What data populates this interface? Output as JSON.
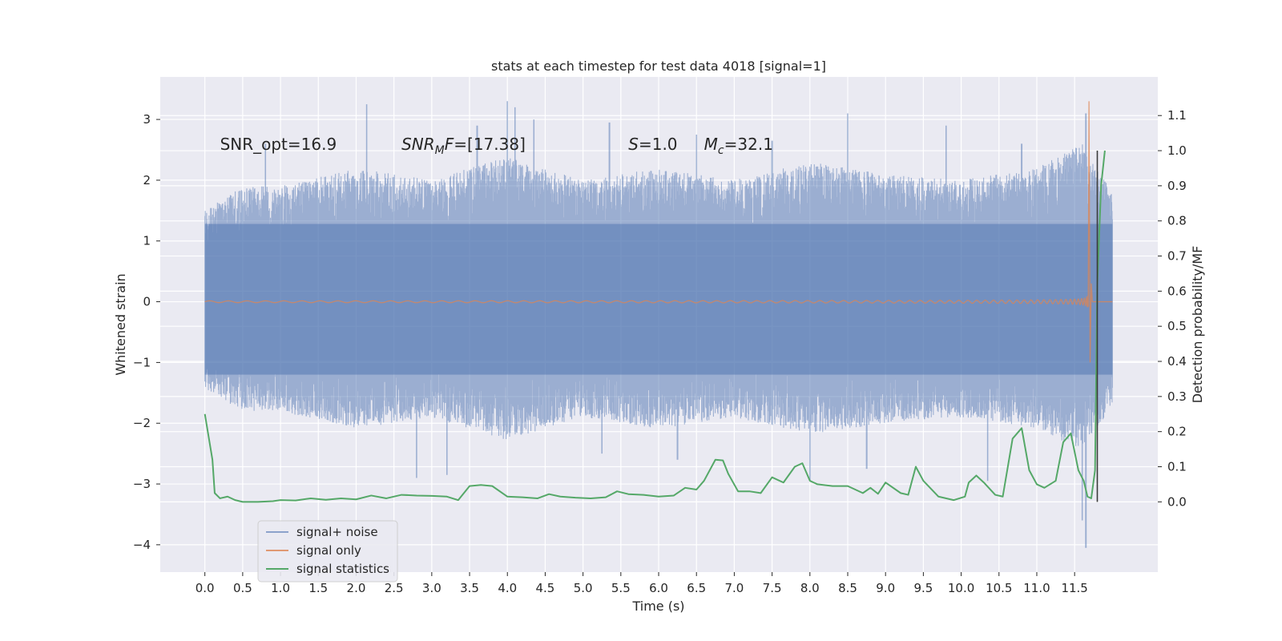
{
  "chart_data": {
    "type": "line",
    "title": "stats at each timestep for test data 4018 [signal=1]",
    "xlabel": "Time (s)",
    "ylabel": "Whitened strain",
    "ylabel_right": "Detection probability/MF",
    "xlim": [
      -0.59,
      12.6
    ],
    "ylim": [
      -4.45,
      3.7
    ],
    "ylim_right": [
      -0.2,
      1.21
    ],
    "x_ticks": [
      "0.0",
      "0.5",
      "1.0",
      "1.5",
      "2.0",
      "2.5",
      "3.0",
      "3.5",
      "4.0",
      "4.5",
      "5.0",
      "5.5",
      "6.0",
      "6.5",
      "7.0",
      "7.5",
      "8.0",
      "8.5",
      "9.0",
      "9.5",
      "10.0",
      "10.5",
      "11.0",
      "11.5"
    ],
    "y_ticks": [
      "3",
      "2",
      "1",
      "0",
      "−1",
      "−2",
      "−3",
      "−4"
    ],
    "y_ticks_right": [
      "1.1",
      "1.0",
      "0.9",
      "0.8",
      "0.7",
      "0.6",
      "0.5",
      "0.4",
      "0.3",
      "0.2",
      "0.1",
      "0.0"
    ],
    "grid": true,
    "legend_position": "lower-left",
    "annotations": [
      {
        "text": "SNR_opt=16.9",
        "x": 0.2,
        "y": 2.5
      },
      {
        "text": "SNR_MF=[17.38]",
        "x": 2.6,
        "y": 2.5
      },
      {
        "text": "S=1.0",
        "x": 5.6,
        "y": 2.5
      },
      {
        "text": "M_c=32.1",
        "x": 6.6,
        "y": 2.5
      }
    ],
    "duration": 12.0,
    "merger_time": 11.68,
    "vertical_marker_x": 11.8,
    "series": [
      {
        "name": "signal+ noise",
        "color": "#4c72b0",
        "opacity": 0.5,
        "envelope": [
          [
            0.0,
            1.5
          ],
          [
            0.5,
            1.9
          ],
          [
            1.0,
            1.9
          ],
          [
            2.0,
            2.2
          ],
          [
            3.0,
            2.0
          ],
          [
            4.0,
            2.4
          ],
          [
            5.0,
            2.0
          ],
          [
            6.0,
            2.2
          ],
          [
            7.0,
            2.0
          ],
          [
            8.0,
            2.3
          ],
          [
            9.0,
            2.1
          ],
          [
            10.0,
            2.0
          ],
          [
            11.0,
            2.2
          ],
          [
            11.6,
            2.6
          ],
          [
            12.0,
            1.8
          ]
        ],
        "peaks_up": [
          [
            0.8,
            2.6
          ],
          [
            2.14,
            3.25
          ],
          [
            3.6,
            2.9
          ],
          [
            4.0,
            3.3
          ],
          [
            4.1,
            3.2
          ],
          [
            4.35,
            3.0
          ],
          [
            5.35,
            2.95
          ],
          [
            6.5,
            2.75
          ],
          [
            7.5,
            2.65
          ],
          [
            8.5,
            3.1
          ],
          [
            9.8,
            2.9
          ],
          [
            10.8,
            2.6
          ],
          [
            11.65,
            3.1
          ]
        ],
        "peaks_down": [
          [
            2.8,
            -2.9
          ],
          [
            3.2,
            -2.85
          ],
          [
            5.25,
            -2.5
          ],
          [
            6.25,
            -2.6
          ],
          [
            8.0,
            -2.95
          ],
          [
            8.75,
            -2.75
          ],
          [
            10.35,
            -2.95
          ],
          [
            11.6,
            -3.6
          ],
          [
            11.65,
            -4.05
          ]
        ]
      },
      {
        "name": "signal only",
        "color": "#dd8452",
        "opacity": 0.75,
        "f0": 4.0,
        "a0": 0.015,
        "peak_amplitude": 3.3
      },
      {
        "name": "signal statistics",
        "color": "#55a868",
        "axis": "right",
        "x": [
          0.0,
          0.1,
          0.13,
          0.2,
          0.3,
          0.4,
          0.5,
          0.7,
          0.9,
          1.0,
          1.2,
          1.4,
          1.6,
          1.8,
          2.0,
          2.2,
          2.4,
          2.6,
          2.8,
          3.0,
          3.2,
          3.35,
          3.5,
          3.65,
          3.8,
          4.0,
          4.2,
          4.4,
          4.55,
          4.7,
          4.9,
          5.1,
          5.3,
          5.45,
          5.6,
          5.8,
          6.0,
          6.2,
          6.35,
          6.5,
          6.6,
          6.75,
          6.85,
          6.92,
          7.05,
          7.2,
          7.35,
          7.5,
          7.65,
          7.8,
          7.9,
          8.0,
          8.1,
          8.3,
          8.5,
          8.7,
          8.8,
          8.9,
          9.0,
          9.2,
          9.3,
          9.4,
          9.5,
          9.7,
          9.9,
          10.05,
          10.1,
          10.2,
          10.3,
          10.45,
          10.55,
          10.68,
          10.8,
          10.9,
          11.0,
          11.1,
          11.25,
          11.35,
          11.45,
          11.55,
          11.62,
          11.67,
          11.72,
          11.77,
          11.8,
          11.85,
          11.9
        ],
        "values": [
          0.25,
          0.12,
          0.025,
          0.01,
          0.015,
          0.005,
          0.0,
          0.0,
          0.002,
          0.005,
          0.004,
          0.01,
          0.006,
          0.01,
          0.007,
          0.018,
          0.01,
          0.02,
          0.018,
          0.017,
          0.015,
          0.005,
          0.045,
          0.048,
          0.045,
          0.015,
          0.013,
          0.01,
          0.022,
          0.015,
          0.012,
          0.01,
          0.013,
          0.03,
          0.022,
          0.02,
          0.015,
          0.018,
          0.04,
          0.035,
          0.06,
          0.12,
          0.118,
          0.08,
          0.03,
          0.03,
          0.025,
          0.07,
          0.055,
          0.1,
          0.11,
          0.06,
          0.05,
          0.045,
          0.045,
          0.025,
          0.04,
          0.023,
          0.055,
          0.025,
          0.02,
          0.1,
          0.06,
          0.015,
          0.005,
          0.015,
          0.055,
          0.075,
          0.055,
          0.02,
          0.015,
          0.18,
          0.21,
          0.09,
          0.05,
          0.04,
          0.06,
          0.17,
          0.195,
          0.09,
          0.06,
          0.015,
          0.01,
          0.09,
          0.62,
          0.9,
          1.0
        ]
      }
    ]
  }
}
